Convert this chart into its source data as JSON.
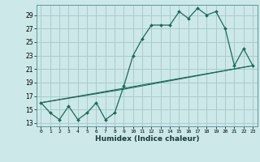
{
  "xlabel": "Humidex (Indice chaleur)",
  "background_color": "#cce8e8",
  "grid_color": "#aacccc",
  "line_color": "#1a6b5a",
  "xlim": [
    -0.5,
    23.5
  ],
  "ylim": [
    12.5,
    30.5
  ],
  "yticks": [
    13,
    15,
    17,
    19,
    21,
    23,
    25,
    27,
    29
  ],
  "xticks": [
    0,
    1,
    2,
    3,
    4,
    5,
    6,
    7,
    8,
    9,
    10,
    11,
    12,
    13,
    14,
    15,
    16,
    17,
    18,
    19,
    20,
    21,
    22,
    23
  ],
  "series1_x": [
    0,
    1,
    2,
    3,
    4,
    5,
    6,
    7,
    8,
    9,
    10,
    11,
    12,
    13,
    14,
    15,
    16,
    17,
    18,
    19,
    20,
    21,
    22,
    23
  ],
  "series1_y": [
    16.0,
    14.5,
    13.5,
    15.5,
    13.5,
    14.5,
    16.0,
    13.5,
    14.5,
    18.5,
    23.0,
    25.5,
    27.5,
    27.5,
    27.5,
    29.5,
    28.5,
    30.0,
    29.0,
    29.5,
    27.0,
    21.5,
    24.0,
    21.5
  ],
  "series2_x": [
    0,
    23
  ],
  "series2_y": [
    16.0,
    21.5
  ],
  "series3_x": [
    0,
    9,
    23
  ],
  "series3_y": [
    16.0,
    18.0,
    21.5
  ]
}
